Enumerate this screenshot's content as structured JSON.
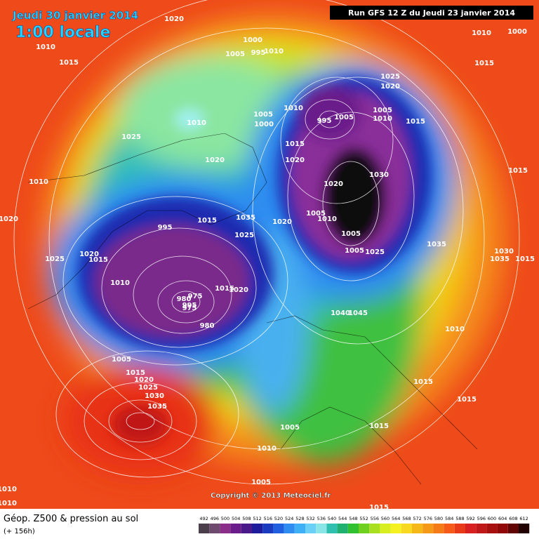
{
  "header": {
    "date": "Jeudi 30 janvier 2014",
    "time": "1:00 locale",
    "run": "Run GFS 12 Z du Jeudi 23 janvier 2014"
  },
  "copyright": "Copyright © 2013 Meteociel.fr",
  "footer": {
    "title": "Géop. Z500 & pression au sol",
    "lead": "(+ 156h)"
  },
  "scale": [
    "492",
    "496",
    "500",
    "504",
    "508",
    "512",
    "516",
    "520",
    "524",
    "528",
    "532",
    "536",
    "540",
    "544",
    "548",
    "552",
    "556",
    "560",
    "564",
    "568",
    "572",
    "576",
    "580",
    "584",
    "588",
    "592",
    "596",
    "600",
    "604",
    "608",
    "612"
  ],
  "isobars": [
    "1020",
    "1010",
    "1015",
    "1000",
    "1005",
    "995",
    "1010",
    "1000",
    "1010",
    "1015",
    "1025",
    "1020",
    "1010",
    "1005",
    "1000",
    "995",
    "1005",
    "1010",
    "1005",
    "1015",
    "1010",
    "1025",
    "1015",
    "1020",
    "1020",
    "1030",
    "1015",
    "1010",
    "1020",
    "1005",
    "1010",
    "1015",
    "1035",
    "1020",
    "995",
    "1025",
    "1005",
    "1020",
    "1005",
    "1025",
    "1035",
    "1030",
    "1035",
    "1015",
    "1025",
    "1020",
    "1015",
    "1010",
    "980",
    "975",
    "975",
    "995",
    "1015",
    "1020",
    "1045",
    "1040",
    "980",
    "1010",
    "1005",
    "1015",
    "1020",
    "1025",
    "1030",
    "1035",
    "1015",
    "1015",
    "1015",
    "1005",
    "1010",
    "1005",
    "1010",
    "1010",
    "1015"
  ]
}
